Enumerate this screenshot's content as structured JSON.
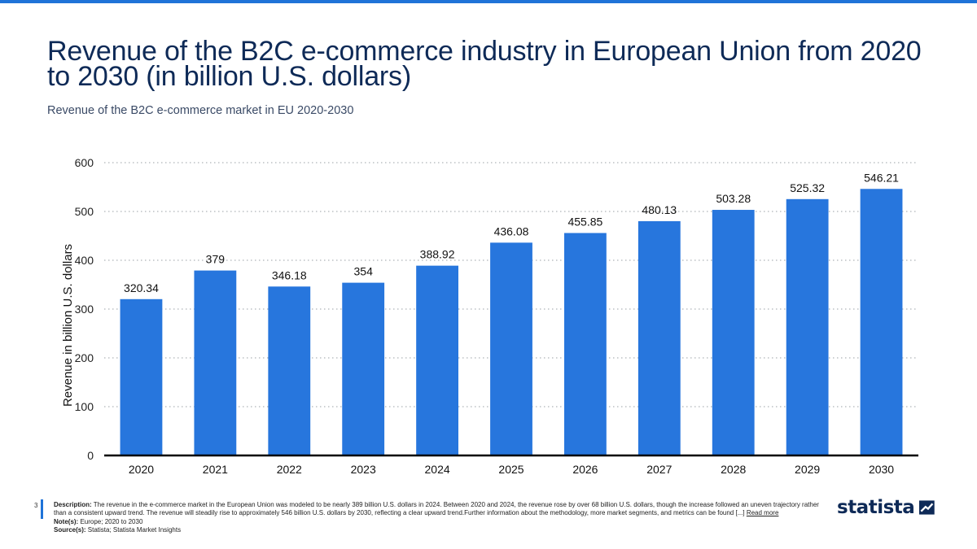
{
  "page": {
    "title": "Revenue of the B2C e-commerce industry in European Union from 2020 to 2030 (in billion U.S. dollars)",
    "subtitle": "Revenue of the B2C e-commerce market in EU 2020-2030",
    "page_number": "3",
    "brand": "statista"
  },
  "footer": {
    "description_label": "Description:",
    "description_text": "The revenue in the e-commerce market in the European Union was modeled to be nearly 389 billion U.S. dollars in 2024. Between 2020 and 2024, the revenue rose by over 68 billion U.S. dollars, though the increase followed an uneven trajectory rather than a consistent upward trend. The revenue will steadily rise to approximately 546 billion U.S. dollars by 2030, reflecting a clear upward trend.Further information about the methodology, more market segments, and metrics can be found [...]",
    "read_more": "Read more",
    "note_label": "Note(s):",
    "note_text": "Europe; 2020 to 2030",
    "source_label": "Source(s):",
    "source_text": "Statista; Statista Market Insights"
  },
  "colors": {
    "accent": "#1f73d8",
    "bar": "#2776dd",
    "title": "#0e2a57",
    "axis": "#000000",
    "grid": "#9aa0a6"
  },
  "chart_data": {
    "type": "bar",
    "categories": [
      "2020",
      "2021",
      "2022",
      "2023",
      "2024",
      "2025",
      "2026",
      "2027",
      "2028",
      "2029",
      "2030"
    ],
    "values": [
      320.34,
      379,
      346.18,
      354,
      388.92,
      436.08,
      455.85,
      480.13,
      503.28,
      525.32,
      546.21
    ],
    "data_labels": [
      "320.34",
      "379",
      "346.18",
      "354",
      "388.92",
      "436.08",
      "455.85",
      "480.13",
      "503.28",
      "525.32",
      "546.21"
    ],
    "ylabel": "Revenue in billion U.S. dollars",
    "xlabel": "",
    "ylim": [
      0,
      600
    ],
    "yticks": [
      "0",
      "100",
      "200",
      "300",
      "400",
      "500",
      "600"
    ],
    "grid": true,
    "grid_style": "dotted"
  }
}
